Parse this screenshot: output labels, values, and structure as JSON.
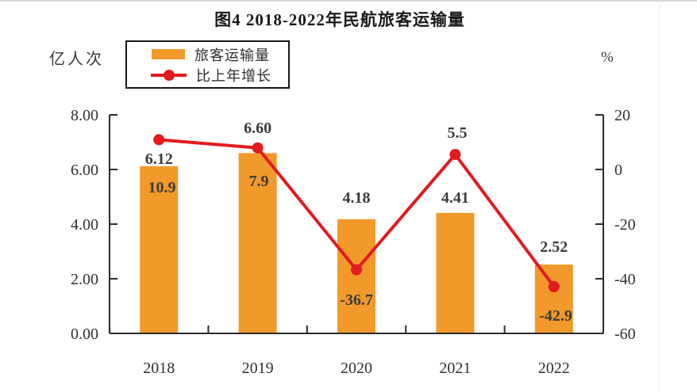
{
  "title": "图4  2018-2022年民航旅客运输量",
  "colors": {
    "bar": "#F2992B",
    "line": "#E11B1E",
    "data_label": "#3b3b3b",
    "axis": "#2b2b2b",
    "tick_label": "#303030"
  },
  "chart_data": {
    "type": "bar+line",
    "title": "图4  2018-2022年民航旅客运输量",
    "categories": [
      "2018",
      "2019",
      "2020",
      "2021",
      "2022"
    ],
    "series": [
      {
        "name": "旅客运输量",
        "type": "bar",
        "axis": "left",
        "values": [
          6.12,
          6.6,
          4.18,
          4.41,
          2.52
        ],
        "labels": [
          "6.12",
          "6.60",
          "4.18",
          "4.41",
          "2.52"
        ]
      },
      {
        "name": "比上年增长",
        "type": "line",
        "axis": "right",
        "values": [
          10.9,
          7.9,
          -36.7,
          5.5,
          -42.9
        ],
        "labels": [
          "10.9",
          "7.9",
          "-36.7",
          "5.5",
          "-42.9"
        ]
      }
    ],
    "left_axis": {
      "unit": "亿人次",
      "min": 0,
      "max": 8,
      "tick_values": [
        8,
        6,
        4,
        2,
        0
      ],
      "tick_labels": [
        "8.00",
        "6.00",
        "4.00",
        "2.00",
        "0.00"
      ]
    },
    "right_axis": {
      "unit": "%",
      "min": -60,
      "max": 20,
      "tick_values": [
        20,
        0,
        -20,
        -40,
        -60
      ],
      "tick_labels": [
        "20",
        "0",
        "-20",
        "-40",
        "-60"
      ]
    },
    "grid": false,
    "legend_position": "top-left"
  }
}
